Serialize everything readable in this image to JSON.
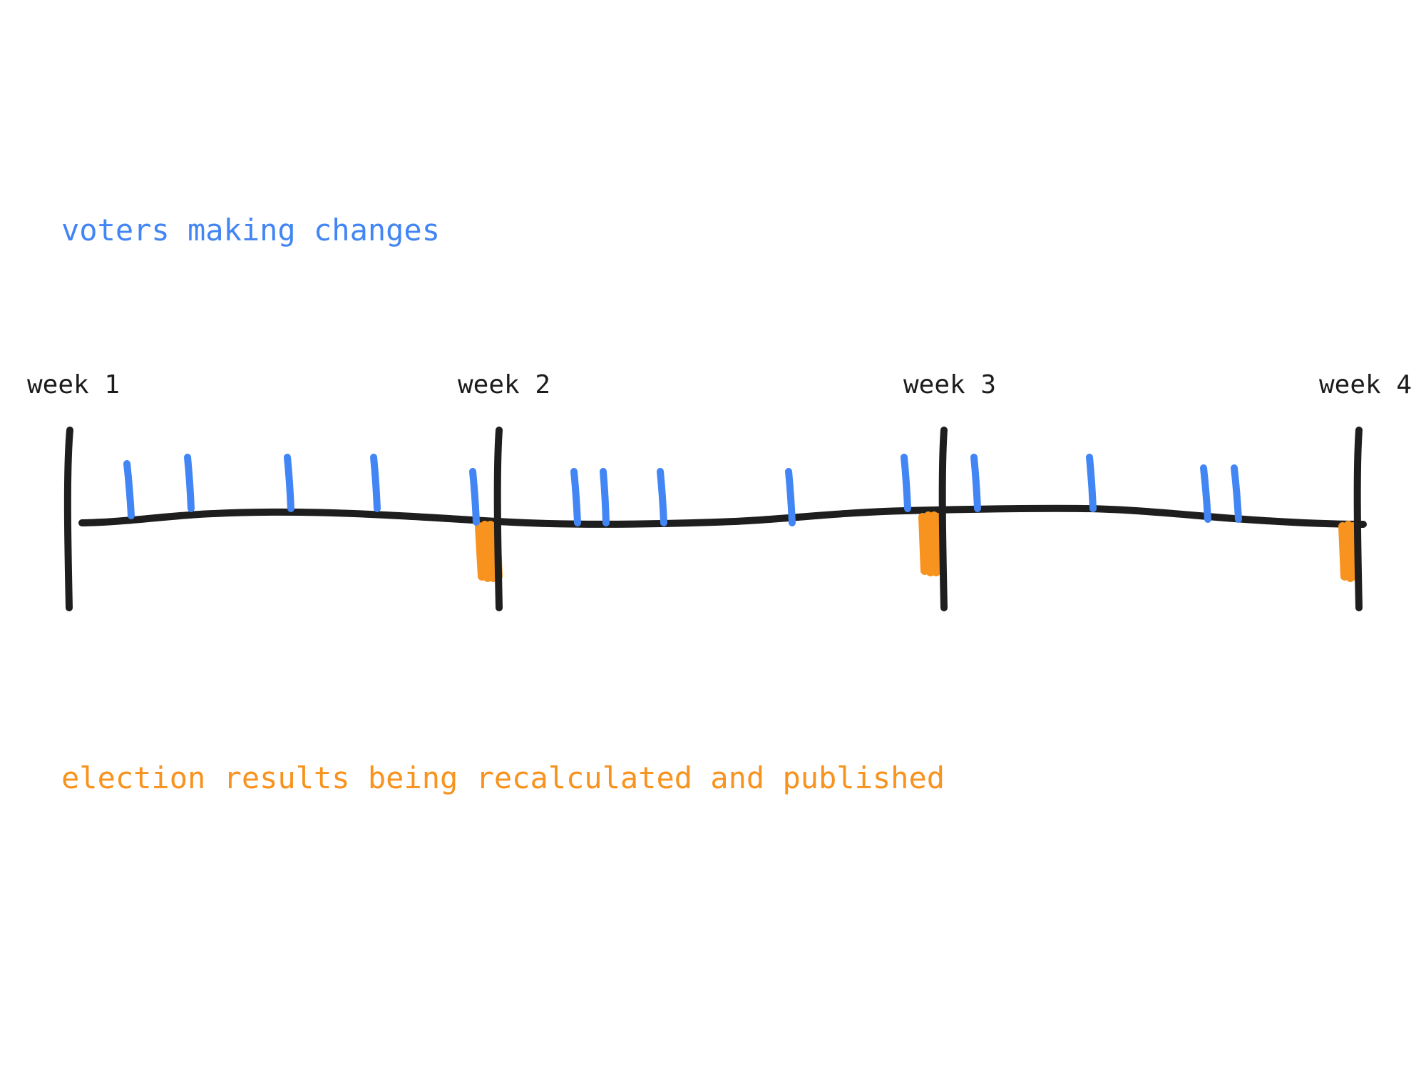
{
  "legend": {
    "voters_label": "voters making changes",
    "results_label": "election results being recalculated and published"
  },
  "weeks": [
    "week 1",
    "week 2",
    "week 3",
    "week 4"
  ],
  "colors": {
    "timeline": "#1e1e1e",
    "voter_change": "#4285f4",
    "recalculation": "#f7931e"
  }
}
